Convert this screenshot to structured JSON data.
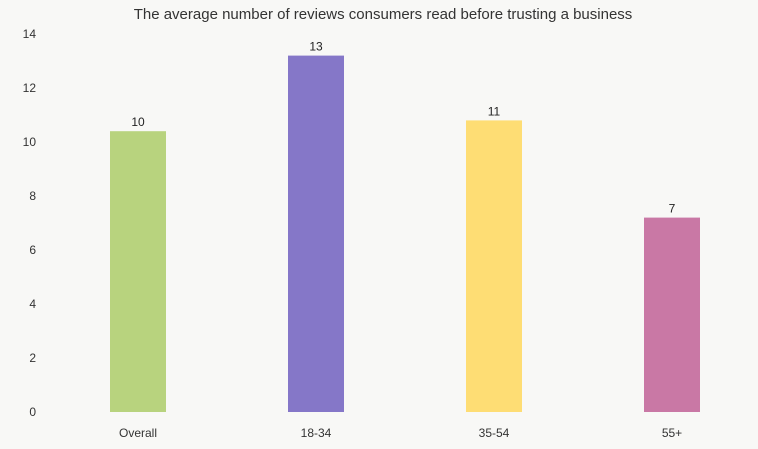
{
  "chart_data": {
    "type": "bar",
    "title": "The average number of reviews consumers read before trusting a business",
    "xlabel": "",
    "ylabel": "",
    "categories": [
      "Overall",
      "18-34",
      "35-54",
      "55+"
    ],
    "values": [
      10.4,
      13.2,
      10.8,
      7.2
    ],
    "data_labels": [
      "10",
      "13",
      "11",
      "7"
    ],
    "colors": [
      "#b8d37e",
      "#8577c8",
      "#fedd74",
      "#c978a5"
    ],
    "ylim": [
      0,
      14
    ],
    "yticks": [
      "0",
      "2",
      "4",
      "6",
      "8",
      "10",
      "12",
      "14"
    ],
    "grid": false,
    "legend": "none"
  }
}
